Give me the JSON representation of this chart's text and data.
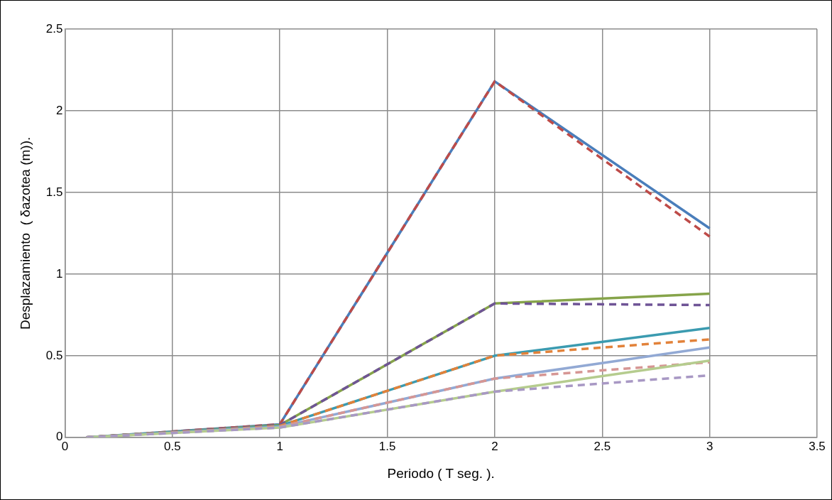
{
  "chart_data": {
    "type": "line",
    "xlabel": "Periodo ( T seg. ).",
    "ylabel": "Desplazamiento  ( δazotea (m)).",
    "x": [
      0.1,
      1,
      2,
      3
    ],
    "xlim": [
      0,
      3.5
    ],
    "xticks": [
      0,
      0.5,
      1,
      1.5,
      2,
      2.5,
      3,
      3.5
    ],
    "ylim": [
      0,
      2.5
    ],
    "yticks": [
      0,
      0.5,
      1,
      1.5,
      2,
      2.5
    ],
    "grid": true,
    "legend": false,
    "marker": "none",
    "series": [
      {
        "color": "#4a7ebb",
        "line_style": "solid",
        "values": [
          0,
          0.08,
          2.18,
          1.28
        ]
      },
      {
        "color": "#be4b48",
        "line_style": "dashed",
        "values": [
          0,
          0.08,
          2.18,
          1.23
        ]
      },
      {
        "color": "#86a44a",
        "line_style": "solid",
        "values": [
          0,
          0.075,
          0.82,
          0.88
        ]
      },
      {
        "color": "#6f5496",
        "line_style": "dashed",
        "values": [
          0,
          0.075,
          0.82,
          0.81
        ]
      },
      {
        "color": "#3b9bb0",
        "line_style": "solid",
        "values": [
          0,
          0.07,
          0.5,
          0.67
        ]
      },
      {
        "color": "#e2823a",
        "line_style": "dashed",
        "values": [
          0,
          0.07,
          0.5,
          0.6
        ]
      },
      {
        "color": "#92a9d4",
        "line_style": "solid",
        "values": [
          0,
          0.065,
          0.36,
          0.55
        ]
      },
      {
        "color": "#d69694",
        "line_style": "dashed",
        "values": [
          0,
          0.065,
          0.36,
          0.46
        ]
      },
      {
        "color": "#b5cc8e",
        "line_style": "solid",
        "values": [
          0,
          0.06,
          0.28,
          0.47
        ]
      },
      {
        "color": "#a898c4",
        "line_style": "dashed",
        "values": [
          0,
          0.06,
          0.28,
          0.38
        ]
      }
    ]
  }
}
